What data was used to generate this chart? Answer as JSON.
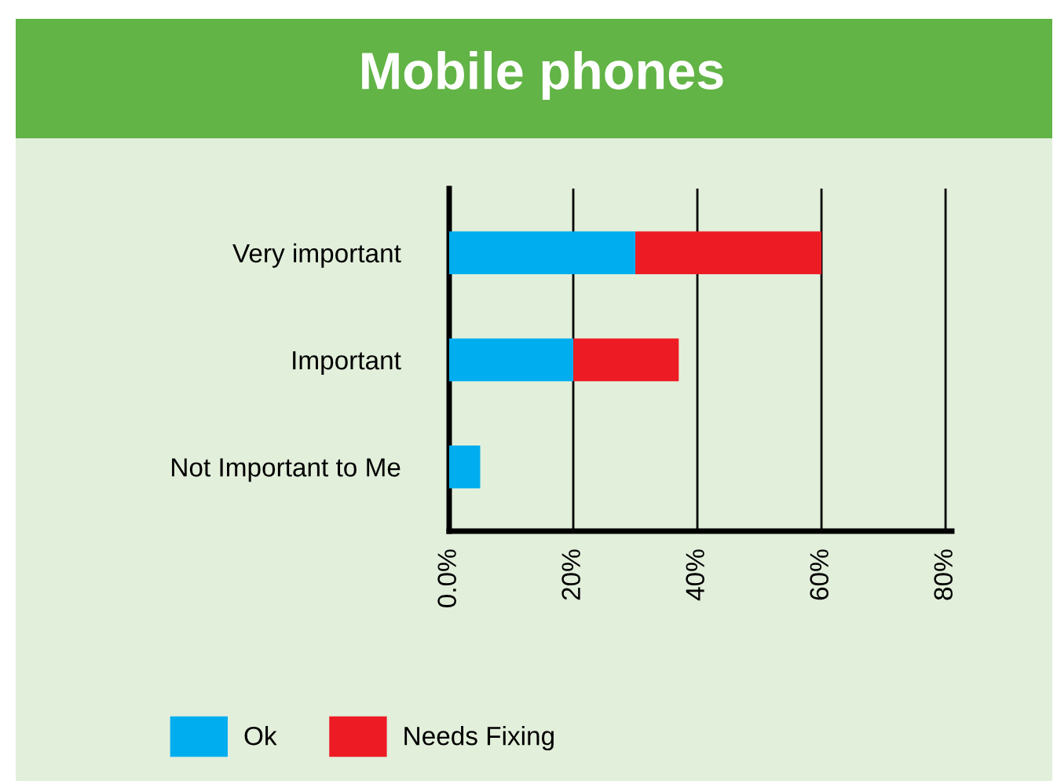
{
  "chart_data": {
    "type": "bar",
    "orientation": "horizontal",
    "stacked": true,
    "title": "Mobile phones",
    "categories": [
      "Very important",
      "Important",
      "Not Important to Me"
    ],
    "series": [
      {
        "name": "Ok",
        "color": "#00aeef",
        "values": [
          30,
          20,
          5
        ]
      },
      {
        "name": "Needs Fixing",
        "color": "#ed1c24",
        "values": [
          30,
          17,
          0
        ]
      }
    ],
    "xlim": [
      0,
      81
    ],
    "xticks": [
      {
        "value": 0,
        "label": "0.0%"
      },
      {
        "value": 20,
        "label": "20%"
      },
      {
        "value": 40,
        "label": "40%"
      },
      {
        "value": 60,
        "label": "60%"
      },
      {
        "value": 80,
        "label": "80%"
      }
    ],
    "grid": "x",
    "legend": "bottom left"
  }
}
